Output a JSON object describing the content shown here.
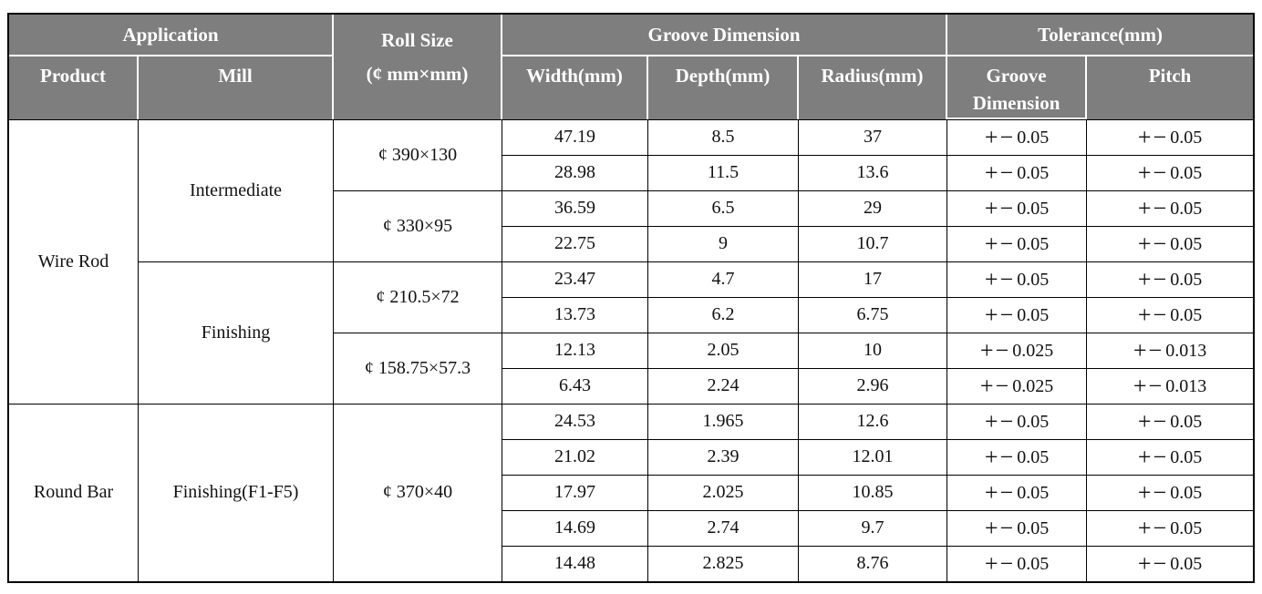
{
  "colors": {
    "header_background": "#7e7e7e",
    "header_text": "#ffffff",
    "body_text": "#111111",
    "body_grid": "#000000",
    "header_grid": "#ffffff"
  },
  "table": {
    "header_rows": [
      [
        {
          "text": "Application",
          "colspan": 2,
          "name": "header-application"
        },
        {
          "text": "Roll Size\n(¢ mm×mm)",
          "rowspan": 2,
          "name": "header-roll-size",
          "cls": "roll-size-head"
        },
        {
          "text": "Groove Dimension",
          "colspan": 3,
          "name": "header-groove-dimension"
        },
        {
          "text": "Tolerance(mm)",
          "colspan": 2,
          "name": "header-tolerance"
        }
      ],
      [
        {
          "text": "Product",
          "name": "header-product"
        },
        {
          "text": "Mill",
          "name": "header-mill"
        },
        {
          "text": "Width(mm)",
          "name": "header-width"
        },
        {
          "text": "Depth(mm)",
          "name": "header-depth"
        },
        {
          "text": "Radius(mm)",
          "name": "header-radius"
        },
        {
          "text": "Groove\nDimension",
          "name": "header-tolerance-groove",
          "cls": "tol-groove-head"
        },
        {
          "text": "Pitch",
          "name": "header-pitch"
        }
      ]
    ],
    "body_rows": [
      [
        {
          "text": "Wire Rod",
          "rowspan": 8,
          "name": "product-cell"
        },
        {
          "text": "Intermediate",
          "rowspan": 4,
          "name": "mill-cell"
        },
        {
          "text": "¢ 390×130",
          "rowspan": 2,
          "name": "roll-size-cell"
        },
        {
          "text": "47.19",
          "name": "width-value-cell"
        },
        {
          "text": "8.5",
          "name": "depth-value-cell"
        },
        {
          "text": "37",
          "name": "radius-value-cell"
        },
        {
          "text": "+−0.05",
          "tol": true,
          "name": "tolerance-groove-cell"
        },
        {
          "text": "+−0.05",
          "tol": true,
          "name": "tolerance-pitch-cell"
        }
      ],
      [
        {
          "text": "28.98",
          "name": "width-value-cell"
        },
        {
          "text": "11.5",
          "name": "depth-value-cell"
        },
        {
          "text": "13.6",
          "name": "radius-value-cell"
        },
        {
          "text": "+−0.05",
          "tol": true,
          "name": "tolerance-groove-cell"
        },
        {
          "text": "+−0.05",
          "tol": true,
          "name": "tolerance-pitch-cell"
        }
      ],
      [
        {
          "text": "¢ 330×95",
          "rowspan": 2,
          "name": "roll-size-cell"
        },
        {
          "text": "36.59",
          "name": "width-value-cell"
        },
        {
          "text": "6.5",
          "name": "depth-value-cell"
        },
        {
          "text": "29",
          "name": "radius-value-cell"
        },
        {
          "text": "+−0.05",
          "tol": true,
          "name": "tolerance-groove-cell"
        },
        {
          "text": "+−0.05",
          "tol": true,
          "name": "tolerance-pitch-cell"
        }
      ],
      [
        {
          "text": "22.75",
          "name": "width-value-cell"
        },
        {
          "text": "9",
          "name": "depth-value-cell"
        },
        {
          "text": "10.7",
          "name": "radius-value-cell"
        },
        {
          "text": "+−0.05",
          "tol": true,
          "name": "tolerance-groove-cell"
        },
        {
          "text": "+−0.05",
          "tol": true,
          "name": "tolerance-pitch-cell"
        }
      ],
      [
        {
          "text": "Finishing",
          "rowspan": 4,
          "name": "mill-cell"
        },
        {
          "text": "¢ 210.5×72",
          "rowspan": 2,
          "name": "roll-size-cell"
        },
        {
          "text": "23.47",
          "name": "width-value-cell"
        },
        {
          "text": "4.7",
          "name": "depth-value-cell"
        },
        {
          "text": "17",
          "name": "radius-value-cell"
        },
        {
          "text": "+−0.05",
          "tol": true,
          "name": "tolerance-groove-cell"
        },
        {
          "text": "+−0.05",
          "tol": true,
          "name": "tolerance-pitch-cell"
        }
      ],
      [
        {
          "text": "13.73",
          "name": "width-value-cell"
        },
        {
          "text": "6.2",
          "name": "depth-value-cell"
        },
        {
          "text": "6.75",
          "name": "radius-value-cell"
        },
        {
          "text": "+−0.05",
          "tol": true,
          "name": "tolerance-groove-cell"
        },
        {
          "text": "+−0.05",
          "tol": true,
          "name": "tolerance-pitch-cell"
        }
      ],
      [
        {
          "text": "¢ 158.75×57.3",
          "rowspan": 2,
          "name": "roll-size-cell"
        },
        {
          "text": "12.13",
          "name": "width-value-cell"
        },
        {
          "text": "2.05",
          "name": "depth-value-cell"
        },
        {
          "text": "10",
          "name": "radius-value-cell"
        },
        {
          "text": "+−0.025",
          "tol": true,
          "name": "tolerance-groove-cell"
        },
        {
          "text": "+−0.013",
          "tol": true,
          "name": "tolerance-pitch-cell"
        }
      ],
      [
        {
          "text": "6.43",
          "name": "width-value-cell"
        },
        {
          "text": "2.24",
          "name": "depth-value-cell"
        },
        {
          "text": "2.96",
          "name": "radius-value-cell"
        },
        {
          "text": "+−0.025",
          "tol": true,
          "name": "tolerance-groove-cell"
        },
        {
          "text": "+−0.013",
          "tol": true,
          "name": "tolerance-pitch-cell"
        }
      ],
      [
        {
          "text": "Round Bar",
          "rowspan": 5,
          "name": "product-cell"
        },
        {
          "text": "Finishing(F1-F5)",
          "rowspan": 5,
          "name": "mill-cell"
        },
        {
          "text": "¢ 370×40",
          "rowspan": 5,
          "name": "roll-size-cell"
        },
        {
          "text": "24.53",
          "name": "width-value-cell"
        },
        {
          "text": "1.965",
          "name": "depth-value-cell"
        },
        {
          "text": "12.6",
          "name": "radius-value-cell"
        },
        {
          "text": "+−0.05",
          "tol": true,
          "name": "tolerance-groove-cell"
        },
        {
          "text": "+−0.05",
          "tol": true,
          "name": "tolerance-pitch-cell"
        }
      ],
      [
        {
          "text": "21.02",
          "name": "width-value-cell"
        },
        {
          "text": "2.39",
          "name": "depth-value-cell"
        },
        {
          "text": "12.01",
          "name": "radius-value-cell"
        },
        {
          "text": "+−0.05",
          "tol": true,
          "name": "tolerance-groove-cell"
        },
        {
          "text": "+−0.05",
          "tol": true,
          "name": "tolerance-pitch-cell"
        }
      ],
      [
        {
          "text": "17.97",
          "name": "width-value-cell"
        },
        {
          "text": "2.025",
          "name": "depth-value-cell"
        },
        {
          "text": "10.85",
          "name": "radius-value-cell"
        },
        {
          "text": "+−0.05",
          "tol": true,
          "name": "tolerance-groove-cell"
        },
        {
          "text": "+−0.05",
          "tol": true,
          "name": "tolerance-pitch-cell"
        }
      ],
      [
        {
          "text": "14.69",
          "name": "width-value-cell"
        },
        {
          "text": "2.74",
          "name": "depth-value-cell"
        },
        {
          "text": "9.7",
          "name": "radius-value-cell"
        },
        {
          "text": "+−0.05",
          "tol": true,
          "name": "tolerance-groove-cell"
        },
        {
          "text": "+−0.05",
          "tol": true,
          "name": "tolerance-pitch-cell"
        }
      ],
      [
        {
          "text": "14.48",
          "name": "width-value-cell"
        },
        {
          "text": "2.825",
          "name": "depth-value-cell"
        },
        {
          "text": "8.76",
          "name": "radius-value-cell"
        },
        {
          "text": "+−0.05",
          "tol": true,
          "name": "tolerance-groove-cell"
        },
        {
          "text": "+−0.05",
          "tol": true,
          "name": "tolerance-pitch-cell"
        }
      ]
    ]
  }
}
